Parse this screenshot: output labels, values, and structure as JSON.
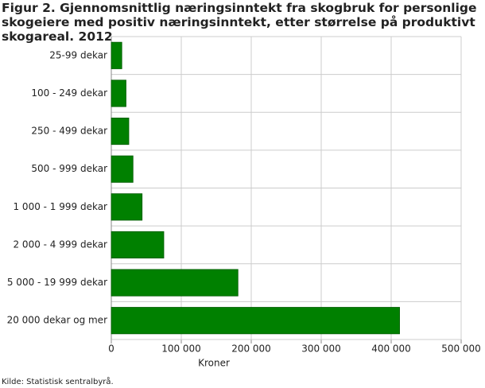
{
  "chart_data": {
    "type": "hbar",
    "title": "Figur 2. Gjennomsnittlig næringsinntekt fra skogbruk for personlige skogeiere med positiv næringsinntekt, etter størrelse på produktivt skogareal. 2012",
    "categories": [
      "25-99 dekar",
      "100 - 249 dekar",
      "250 - 499 dekar",
      "500 - 999 dekar",
      "1 000 - 1 999 dekar",
      "2 000 - 4 999 dekar",
      "5 000 - 19 999 dekar",
      "20 000 dekar og mer"
    ],
    "values": [
      15000,
      21000,
      25000,
      31000,
      44000,
      75000,
      181000,
      412000
    ],
    "color": "#008000",
    "xlim": [
      0,
      500000
    ],
    "xticks": [
      0,
      {
        "value": 100000,
        "label": "100 000"
      },
      {
        "value": 200000,
        "label": "200 000"
      },
      {
        "value": 300000,
        "label": "300 000"
      },
      {
        "value": 400000,
        "label": "400 000"
      },
      {
        "value": 500000,
        "label": "500 000"
      }
    ],
    "xlabel": "Kroner",
    "source": "Kilde: Statistisk sentralbyrå.",
    "grid": true
  }
}
